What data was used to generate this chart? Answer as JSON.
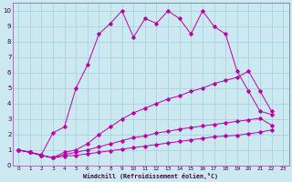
{
  "xlabel": "Windchill (Refroidissement éolien,°C)",
  "background_color": "#cce8f0",
  "grid_color": "#aad4e0",
  "line_color": "#bb00aa",
  "spine_color": "#9966aa",
  "xlim": [
    -0.5,
    23.5
  ],
  "ylim": [
    0,
    10.5
  ],
  "xticks": [
    0,
    1,
    2,
    3,
    4,
    5,
    6,
    7,
    8,
    9,
    10,
    11,
    12,
    13,
    14,
    15,
    16,
    17,
    18,
    19,
    20,
    21,
    22,
    23
  ],
  "yticks": [
    0,
    1,
    2,
    3,
    4,
    5,
    6,
    7,
    8,
    9,
    10
  ],
  "series": [
    {
      "x": [
        0,
        1,
        2,
        3,
        4,
        5,
        6,
        7,
        8,
        9,
        10,
        11,
        12,
        13,
        14,
        15,
        16,
        17,
        18,
        19,
        20,
        21,
        22,
        23
      ],
      "y": [
        1.0,
        0.85,
        0.7,
        2.1,
        2.5,
        5.0,
        6.5,
        8.5,
        9.2,
        10.0,
        8.3,
        9.5,
        9.2,
        10.0,
        9.5,
        8.5,
        10.0,
        9.0,
        8.5,
        6.1,
        4.8,
        3.5,
        3.3,
        null
      ]
    },
    {
      "x": [
        0,
        1,
        2,
        3,
        4,
        5,
        6,
        7,
        8,
        9,
        10,
        11,
        12,
        13,
        14,
        15,
        16,
        17,
        18,
        19,
        20,
        21,
        22,
        23
      ],
      "y": [
        1.0,
        0.85,
        0.65,
        0.5,
        0.85,
        1.0,
        1.4,
        2.0,
        2.5,
        3.0,
        3.4,
        3.7,
        4.0,
        4.3,
        4.5,
        4.8,
        5.0,
        5.3,
        5.5,
        5.7,
        6.1,
        4.8,
        3.5,
        null
      ]
    },
    {
      "x": [
        0,
        1,
        2,
        3,
        4,
        5,
        6,
        7,
        8,
        9,
        10,
        11,
        12,
        13,
        14,
        15,
        16,
        17,
        18,
        19,
        20,
        21,
        22,
        23
      ],
      "y": [
        1.0,
        0.85,
        0.65,
        0.5,
        0.7,
        0.85,
        1.0,
        1.2,
        1.4,
        1.6,
        1.8,
        1.9,
        2.1,
        2.2,
        2.35,
        2.45,
        2.55,
        2.65,
        2.75,
        2.85,
        2.95,
        3.05,
        2.6,
        null
      ]
    },
    {
      "x": [
        0,
        1,
        2,
        3,
        4,
        5,
        6,
        7,
        8,
        9,
        10,
        11,
        12,
        13,
        14,
        15,
        16,
        17,
        18,
        19,
        20,
        21,
        22,
        23
      ],
      "y": [
        1.0,
        0.85,
        0.65,
        0.5,
        0.6,
        0.65,
        0.75,
        0.85,
        0.95,
        1.05,
        1.15,
        1.25,
        1.35,
        1.45,
        1.55,
        1.65,
        1.75,
        1.85,
        1.9,
        1.95,
        2.05,
        2.15,
        2.3,
        null
      ]
    }
  ]
}
